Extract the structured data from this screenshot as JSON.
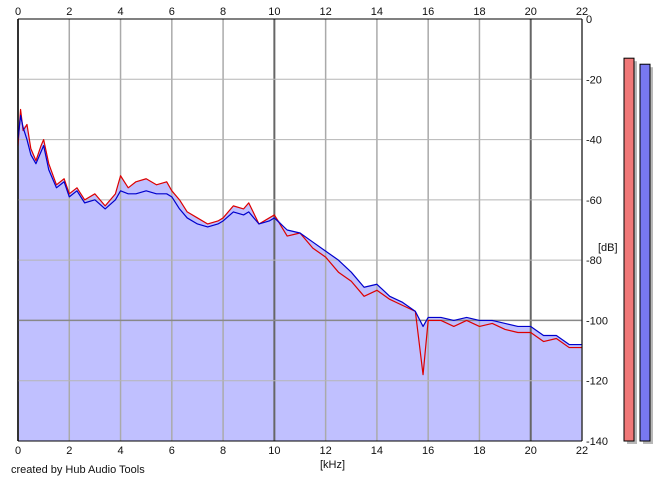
{
  "chart_data": {
    "type": "area",
    "title": "",
    "xlabel": "[kHz]",
    "ylabel": "[dB]",
    "xlim": [
      0,
      22
    ],
    "ylim": [
      -140,
      0
    ],
    "x_ticks": [
      0,
      2,
      4,
      6,
      8,
      10,
      12,
      14,
      16,
      18,
      20,
      22
    ],
    "y_ticks": [
      0,
      -20,
      -40,
      -60,
      -80,
      -100,
      -120,
      -140
    ],
    "y_tick_labels": [
      "0",
      "-20",
      "-40",
      "-60",
      "-80",
      "-100",
      "-120",
      "-140"
    ],
    "grid": true,
    "x_ticks_top": true,
    "y_axis_side": "right",
    "series": [
      {
        "color": "#dd0000",
        "x": [
          0,
          0.1,
          0.2,
          0.35,
          0.5,
          0.7,
          0.9,
          1.0,
          1.2,
          1.5,
          1.8,
          2.0,
          2.3,
          2.6,
          3.0,
          3.4,
          3.8,
          4.0,
          4.3,
          4.6,
          5.0,
          5.4,
          5.8,
          6.0,
          6.3,
          6.6,
          7.0,
          7.4,
          7.8,
          8.0,
          8.4,
          8.8,
          9.0,
          9.4,
          9.8,
          10.0,
          10.5,
          11.0,
          11.5,
          12.0,
          12.5,
          13.0,
          13.5,
          14.0,
          14.5,
          15.0,
          15.5,
          15.8,
          16.0,
          16.5,
          17.0,
          17.5,
          18.0,
          18.5,
          19.0,
          19.5,
          20.0,
          20.5,
          21.0,
          21.5,
          22.0
        ],
        "y": [
          -42,
          -30,
          -37,
          -35,
          -43,
          -47,
          -42,
          -40,
          -48,
          -55,
          -53,
          -58,
          -56,
          -60,
          -58,
          -62,
          -58,
          -52,
          -56,
          -54,
          -53,
          -55,
          -54,
          -57,
          -60,
          -64,
          -66,
          -68,
          -67,
          -66,
          -62,
          -63,
          -61,
          -68,
          -66,
          -65,
          -72,
          -71,
          -76,
          -79,
          -84,
          -87,
          -92,
          -90,
          -93,
          -95,
          -97,
          -118,
          -100,
          -100,
          -102,
          -100,
          -102,
          -101,
          -103,
          -104,
          -104,
          -107,
          -106,
          -109,
          -109
        ]
      },
      {
        "color": "#0000cc",
        "x": [
          0,
          0.1,
          0.2,
          0.35,
          0.5,
          0.7,
          0.9,
          1.0,
          1.2,
          1.5,
          1.8,
          2.0,
          2.3,
          2.6,
          3.0,
          3.4,
          3.8,
          4.0,
          4.3,
          4.6,
          5.0,
          5.4,
          5.8,
          6.0,
          6.3,
          6.6,
          7.0,
          7.4,
          7.8,
          8.0,
          8.4,
          8.8,
          9.0,
          9.4,
          9.8,
          10.0,
          10.5,
          11.0,
          11.5,
          12.0,
          12.5,
          13.0,
          13.5,
          14.0,
          14.5,
          15.0,
          15.5,
          15.8,
          16.0,
          16.5,
          17.0,
          17.5,
          18.0,
          18.5,
          19.0,
          19.5,
          20.0,
          20.5,
          21.0,
          21.5,
          22.0
        ],
        "y": [
          -40,
          -32,
          -36,
          -40,
          -45,
          -48,
          -44,
          -42,
          -50,
          -56,
          -54,
          -59,
          -57,
          -61,
          -60,
          -63,
          -60,
          -57,
          -58,
          -58,
          -57,
          -58,
          -58,
          -59,
          -63,
          -66,
          -68,
          -69,
          -68,
          -67,
          -64,
          -65,
          -64,
          -68,
          -67,
          -66,
          -70,
          -71,
          -74,
          -77,
          -80,
          -84,
          -89,
          -88,
          -92,
          -94,
          -97,
          -102,
          -99,
          -99,
          -100,
          -99,
          -100,
          -100,
          -101,
          -102,
          -102,
          -105,
          -105,
          -108,
          -108
        ]
      }
    ],
    "fill_color": "#c0c0ff",
    "level_meters": [
      {
        "channel": "left",
        "color": "#f07878",
        "level_db": -13
      },
      {
        "channel": "right",
        "color": "#7878f0",
        "level_db": -15
      }
    ]
  },
  "credit": "created by Hub Audio Tools"
}
